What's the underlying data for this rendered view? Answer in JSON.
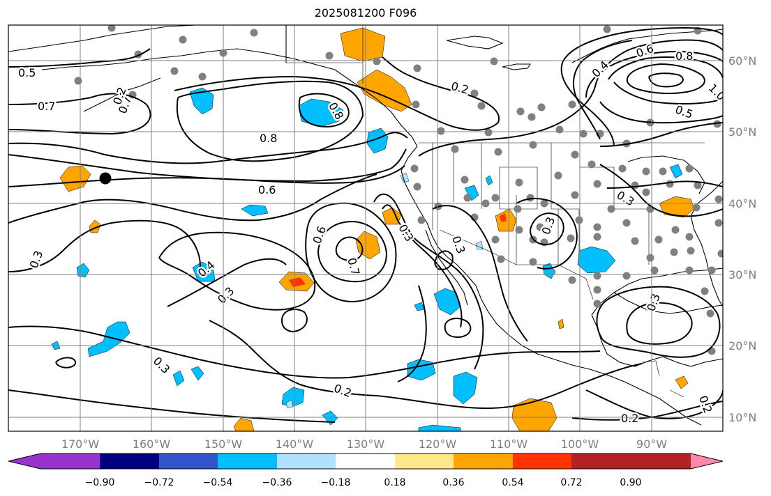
{
  "title": "2025081200 F096",
  "lon_labels": [
    "170°W",
    "160°W",
    "150°W",
    "140°W",
    "130°W",
    "120°W",
    "110°W",
    "100°W",
    "90°W"
  ],
  "lat_labels": [
    "60°N",
    "50°N",
    "40°N",
    "30°N",
    "20°N",
    "10°N"
  ],
  "colorbar": {
    "ticks": [
      "−0.90",
      "−0.72",
      "−0.54",
      "−0.36",
      "−0.18",
      "0.18",
      "0.36",
      "0.54",
      "0.72",
      "0.90"
    ],
    "colors": [
      "#9933cc",
      "#000080",
      "#3355cc",
      "#00bfff",
      "#aee2ff",
      "#ffffff",
      "#ffe98a",
      "#ffa500",
      "#ff3300",
      "#b22222",
      "#ff88aa"
    ]
  },
  "contour_labels": [
    "0.5",
    "0.7",
    "0.7",
    "0.8",
    "0.8",
    "0.6",
    "0.2",
    "0.3",
    "0.4",
    "0.3",
    "0.6",
    "0.7",
    "0.3",
    "0.3",
    "0.3",
    "0.2",
    "0.2",
    "0.2",
    "0.3",
    "0.4",
    "0.6",
    "0.8",
    "0.5",
    "1.0",
    "0.3",
    "0.3",
    "0.2"
  ]
}
